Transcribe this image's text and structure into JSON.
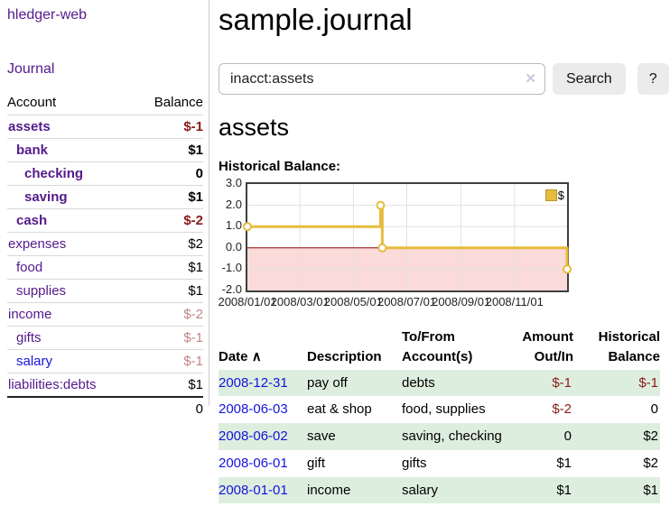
{
  "app": {
    "brand": "hledger-web",
    "nav_journal": "Journal"
  },
  "sidebar": {
    "accounts_header": {
      "account": "Account",
      "balance": "Balance"
    },
    "accounts": [
      {
        "name": "assets",
        "balance": "$-1",
        "depth": 1,
        "bold": true,
        "negative": true,
        "muted": false,
        "unvisited": false
      },
      {
        "name": "bank",
        "balance": "$1",
        "depth": 2,
        "bold": true,
        "negative": false,
        "muted": false,
        "unvisited": false
      },
      {
        "name": "checking",
        "balance": "0",
        "depth": 3,
        "bold": true,
        "negative": false,
        "muted": false,
        "unvisited": false
      },
      {
        "name": "saving",
        "balance": "$1",
        "depth": 3,
        "bold": true,
        "negative": false,
        "muted": false,
        "unvisited": false
      },
      {
        "name": "cash",
        "balance": "$-2",
        "depth": 2,
        "bold": true,
        "negative": true,
        "muted": false,
        "unvisited": false
      },
      {
        "name": "expenses",
        "balance": "$2",
        "depth": 1,
        "bold": false,
        "negative": false,
        "muted": false,
        "unvisited": false
      },
      {
        "name": "food",
        "balance": "$1",
        "depth": 2,
        "bold": false,
        "negative": false,
        "muted": false,
        "unvisited": false
      },
      {
        "name": "supplies",
        "balance": "$1",
        "depth": 2,
        "bold": false,
        "negative": false,
        "muted": false,
        "unvisited": false
      },
      {
        "name": "income",
        "balance": "$-2",
        "depth": 1,
        "bold": false,
        "negative": true,
        "muted": true,
        "unvisited": false
      },
      {
        "name": "gifts",
        "balance": "$-1",
        "depth": 2,
        "bold": false,
        "negative": true,
        "muted": true,
        "unvisited": false
      },
      {
        "name": "salary",
        "balance": "$-1",
        "depth": 2,
        "bold": false,
        "negative": true,
        "muted": true,
        "unvisited": true
      },
      {
        "name": "liabilities:debts",
        "balance": "$1",
        "depth": 1,
        "bold": false,
        "negative": false,
        "muted": false,
        "unvisited": false
      }
    ],
    "total": "0"
  },
  "header": {
    "title": "sample.journal"
  },
  "search": {
    "value": "inacct:assets",
    "button": "Search",
    "help_button": "?"
  },
  "account_page": {
    "title": "assets",
    "chart_label": "Historical Balance:"
  },
  "chart_data": {
    "type": "line",
    "title": "Historical Balance",
    "step": true,
    "series": [
      {
        "name": "$",
        "points": [
          [
            "2008-01-01",
            1.0
          ],
          [
            "2008-06-01",
            2.0
          ],
          [
            "2008-06-03",
            0.0
          ],
          [
            "2008-12-31",
            -1.0
          ]
        ]
      }
    ],
    "x_ticks": [
      "2008/01/01",
      "2008/03/01",
      "2008/05/01",
      "2008/07/01",
      "2008/09/01",
      "2008/11/01"
    ],
    "y_ticks": [
      "3.0",
      "2.0",
      "1.0",
      "0.0",
      "-1.0",
      "-2.0"
    ],
    "ylim": [
      -2.0,
      3.0
    ],
    "xlim": [
      "2008-01-01",
      "2008-12-31"
    ],
    "legend": {
      "label": "$",
      "position": "top-right"
    },
    "grid": true,
    "negative_region_shaded": true
  },
  "register": {
    "columns": {
      "date": "Date",
      "description": "Description",
      "accounts": "To/From Account(s)",
      "amount": "Amount Out/In",
      "balance": "Historical Balance"
    },
    "rows": [
      {
        "date": "2008-12-31",
        "description": "pay off",
        "accounts": "debts",
        "amount": "$-1",
        "amount_negative": true,
        "balance": "$-1",
        "balance_negative": true
      },
      {
        "date": "2008-06-03",
        "description": "eat & shop",
        "accounts": "food, supplies",
        "amount": "$-2",
        "amount_negative": true,
        "balance": "0",
        "balance_negative": false
      },
      {
        "date": "2008-06-02",
        "description": "save",
        "accounts": "saving, checking",
        "amount": "0",
        "amount_negative": false,
        "balance": "$2",
        "balance_negative": false
      },
      {
        "date": "2008-06-01",
        "description": "gift",
        "accounts": "gifts",
        "amount": "$1",
        "amount_negative": false,
        "balance": "$2",
        "balance_negative": false
      },
      {
        "date": "2008-01-01",
        "description": "income",
        "accounts": "salary",
        "amount": "$1",
        "amount_negative": false,
        "balance": "$1",
        "balance_negative": false
      }
    ]
  },
  "icons": {
    "clear": "✕",
    "sort_asc": "∧"
  },
  "colors": {
    "brand_purple": "#551a8b",
    "link_blue": "#1414dd",
    "negative": "#8b1a1a",
    "negative_muted": "#c28484",
    "row_green": "#deeede",
    "chart_line": "#e6bc3f",
    "chart_area_pink": "#fbdada",
    "chart_zero": "#8b0000",
    "grid_line": "#e2e2e2",
    "button_bg": "#ebebeb"
  }
}
